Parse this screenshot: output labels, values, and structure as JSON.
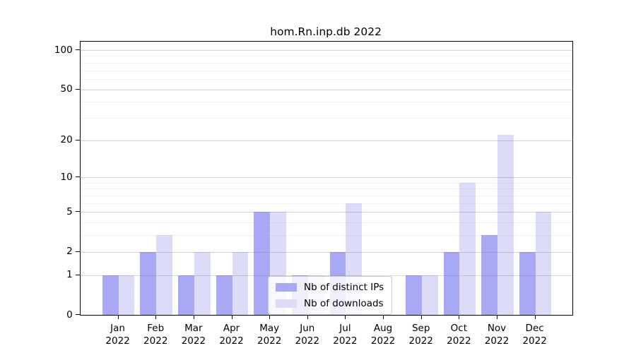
{
  "title": "hom.Rn.inp.db 2022",
  "colors": {
    "distinct_ips": "#a8a8f4",
    "downloads": "#dcdcf9",
    "grid_major": "rgba(110,110,110,0.28)",
    "grid_minor": "rgba(140,140,140,0.13)",
    "spine": "#000000",
    "text": "#000000",
    "legend_border": "#cccccc"
  },
  "legend": {
    "items": [
      {
        "label": "Nb of distinct IPs",
        "color_key": "distinct_ips"
      },
      {
        "label": "Nb of downloads",
        "color_key": "downloads"
      }
    ]
  },
  "chart_data": {
    "type": "bar",
    "title": "hom.Rn.inp.db 2022",
    "categories": [
      {
        "month": "Jan",
        "year": "2022"
      },
      {
        "month": "Feb",
        "year": "2022"
      },
      {
        "month": "Mar",
        "year": "2022"
      },
      {
        "month": "Apr",
        "year": "2022"
      },
      {
        "month": "May",
        "year": "2022"
      },
      {
        "month": "Jun",
        "year": "2022"
      },
      {
        "month": "Jul",
        "year": "2022"
      },
      {
        "month": "Aug",
        "year": "2022"
      },
      {
        "month": "Sep",
        "year": "2022"
      },
      {
        "month": "Oct",
        "year": "2022"
      },
      {
        "month": "Nov",
        "year": "2022"
      },
      {
        "month": "Dec",
        "year": "2022"
      }
    ],
    "series": [
      {
        "name": "Nb of distinct IPs",
        "values": [
          1,
          2,
          1,
          1,
          5,
          1,
          2,
          0,
          1,
          2,
          3,
          2
        ]
      },
      {
        "name": "Nb of downloads",
        "values": [
          1,
          3,
          2,
          2,
          5,
          1,
          6,
          0,
          1,
          9,
          22,
          5
        ]
      }
    ],
    "xlabel": "",
    "ylabel": "",
    "yscale": "log1p",
    "ylim": [
      0,
      114
    ],
    "y_major_ticks": [
      0,
      1,
      2,
      5,
      10,
      20,
      50,
      100
    ],
    "y_minor_ticks": [
      3,
      4,
      6,
      7,
      8,
      9,
      30,
      40,
      60,
      70,
      80,
      90
    ],
    "grid": true,
    "legend_position": "lower center"
  }
}
